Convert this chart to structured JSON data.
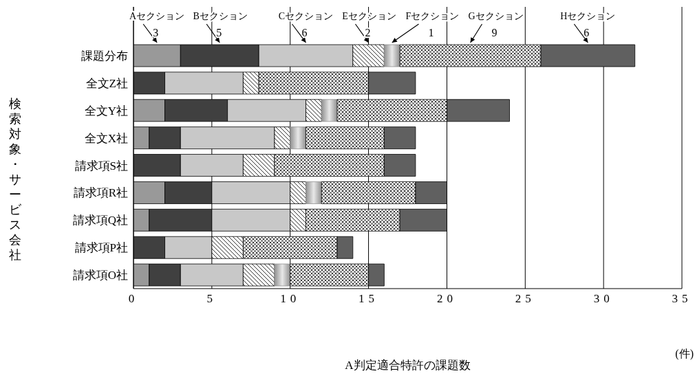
{
  "chart_data": {
    "type": "bar",
    "orientation": "horizontal",
    "stacked": true,
    "xlabel": "A判定適合特許の課題数",
    "ylabel": "検索対象・サービス会社",
    "categories": [
      "課題分布",
      "全文Z社",
      "全文Y社",
      "全文X社",
      "請求項S社",
      "請求項R社",
      "請求項Q社",
      "請求項P社",
      "請求項O社"
    ],
    "series": [
      {
        "name": "Aセクション",
        "color": "#999999",
        "values": [
          3,
          0,
          2,
          1,
          0,
          2,
          1,
          0,
          1
        ],
        "value_labels": [
          "3",
          null,
          null,
          null,
          null,
          null,
          null,
          null,
          null
        ]
      },
      {
        "name": "Bセクション",
        "color": "#404040",
        "values": [
          5,
          2,
          4,
          2,
          3,
          3,
          4,
          2,
          2
        ],
        "value_labels": [
          "5",
          null,
          null,
          null,
          null,
          null,
          null,
          null,
          null
        ]
      },
      {
        "name": "Cセクション",
        "color": "#c8c8c8",
        "values": [
          6,
          5,
          5,
          6,
          4,
          5,
          5,
          3,
          4
        ],
        "value_labels": [
          "6",
          null,
          null,
          null,
          null,
          null,
          null,
          null,
          null
        ]
      },
      {
        "name": "Eセクション",
        "color": "#000000",
        "values": [
          2,
          1,
          1,
          1,
          2,
          1,
          1,
          2,
          2
        ],
        "value_labels": [
          "2",
          null,
          null,
          null,
          null,
          null,
          null,
          null,
          null
        ]
      },
      {
        "name": "Fセクション",
        "color": "#909090",
        "values": [
          1,
          0,
          1,
          1,
          0,
          1,
          0,
          0,
          1
        ],
        "value_labels": [
          "1",
          null,
          null,
          null,
          null,
          null,
          null,
          null,
          null
        ]
      },
      {
        "name": "Gセクション",
        "color": "#000000",
        "values": [
          9,
          7,
          7,
          5,
          7,
          6,
          6,
          6,
          5
        ],
        "value_labels": [
          "9",
          null,
          null,
          null,
          null,
          null,
          null,
          null,
          null
        ]
      },
      {
        "name": "Hセクション",
        "color": "#606060",
        "values": [
          6,
          3,
          4,
          2,
          2,
          2,
          3,
          1,
          1
        ],
        "value_labels": [
          "6",
          null,
          null,
          null,
          null,
          null,
          null,
          null,
          null
        ]
      }
    ],
    "xlim": [
      0,
      35
    ],
    "xticks": [
      0,
      5,
      10,
      15,
      20,
      25,
      30,
      35
    ],
    "grid": "x",
    "legend": false,
    "annotations": [
      "(件)"
    ]
  }
}
